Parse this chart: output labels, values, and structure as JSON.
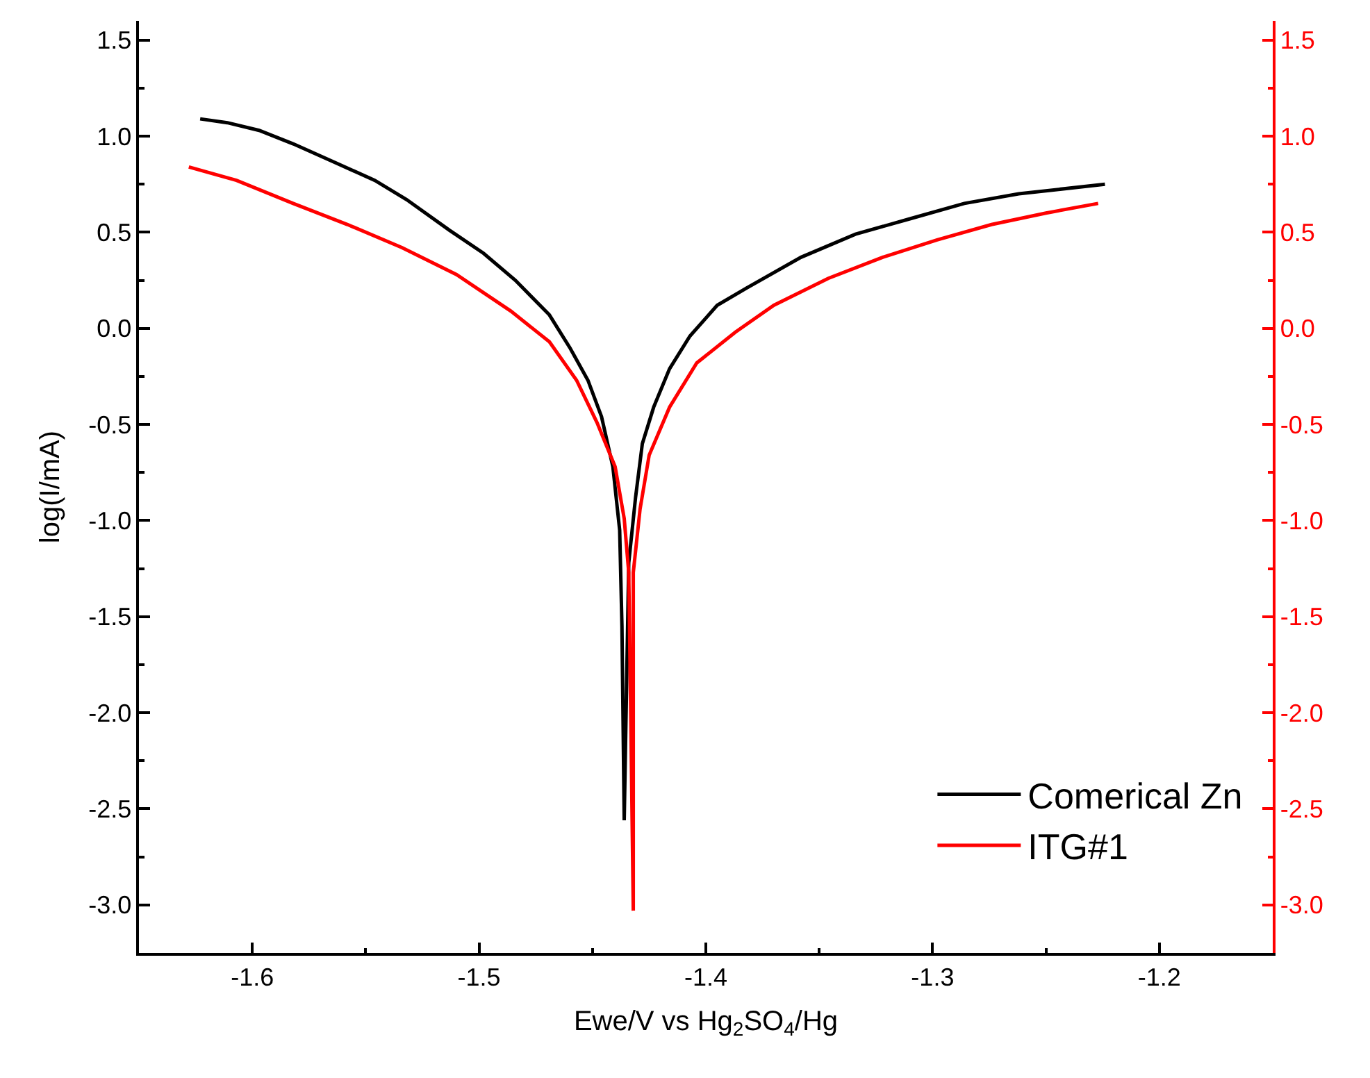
{
  "chart_data": {
    "type": "line",
    "xlabel": "Ewe/V vs Hg$_{2}$SO$_{4}$/Hg",
    "ylabel": "log(I/mA)",
    "xlim": [
      -1.65,
      -1.15
    ],
    "xticks": [
      -1.6,
      -1.5,
      -1.4,
      -1.3,
      -1.2
    ],
    "ylim": [
      -3.25,
      1.6
    ],
    "yticks": [
      {
        "value": 1.5,
        "label": "1.5"
      },
      {
        "value": 1,
        "label": "1.0"
      },
      {
        "value": 0.5,
        "label": "0.5"
      },
      {
        "value": 0,
        "label": "0.0"
      },
      {
        "value": -0.5,
        "label": "-0.5"
      },
      {
        "value": -1,
        "label": "-1.0"
      },
      {
        "value": -1.5,
        "label": "-1.5"
      },
      {
        "value": -2,
        "label": "-2.0"
      },
      {
        "value": -2.5,
        "label": "-2.5"
      },
      {
        "value": -3,
        "label": "-3.0"
      }
    ],
    "y2lim": [
      -3.25,
      1.6
    ],
    "y2ticks": [
      {
        "value": 1.5,
        "label": "1.5"
      },
      {
        "value": 1,
        "label": "1.0"
      },
      {
        "value": 0.5,
        "label": "0.5"
      },
      {
        "value": 0,
        "label": "0.0"
      },
      {
        "value": -0.5,
        "label": "-0.5"
      },
      {
        "value": -1,
        "label": "-1.0"
      },
      {
        "value": -1.5,
        "label": "-1.5"
      },
      {
        "value": -2,
        "label": "-2.0"
      },
      {
        "value": -2.5,
        "label": "-2.5"
      },
      {
        "value": -3,
        "label": "-3.0"
      }
    ],
    "legend": "bottom right",
    "marker": "none",
    "line_style": "solid",
    "series": [
      {
        "name": "Comerical Zn",
        "color": "#000000",
        "x": [
          -1.623,
          -1.611,
          -1.597,
          -1.582,
          -1.563,
          -1.546,
          -1.532,
          -1.513,
          -1.498,
          -1.484,
          -1.469,
          -1.46,
          -1.452,
          -1.446,
          -1.441,
          -1.438,
          -1.437,
          -1.436,
          -1.434,
          -1.431,
          -1.428,
          -1.423,
          -1.416,
          -1.407,
          -1.395,
          -1.382,
          -1.358,
          -1.334,
          -1.31,
          -1.286,
          -1.262,
          -1.224
        ],
        "values": [
          1.09,
          1.07,
          1.03,
          0.96,
          0.86,
          0.77,
          0.67,
          0.51,
          0.39,
          0.25,
          0.07,
          -0.1,
          -0.27,
          -0.46,
          -0.72,
          -1.05,
          -1.55,
          -2.56,
          -1.22,
          -0.88,
          -0.6,
          -0.41,
          -0.21,
          -0.04,
          0.12,
          0.21,
          0.37,
          0.49,
          0.57,
          0.65,
          0.7,
          0.75
        ]
      },
      {
        "name": "ITG#1",
        "color": "#ff0000",
        "axis": "y2",
        "x": [
          -1.628,
          -1.607,
          -1.582,
          -1.558,
          -1.534,
          -1.51,
          -1.486,
          -1.469,
          -1.457,
          -1.448,
          -1.44,
          -1.436,
          -1.434,
          -1.433,
          -1.432,
          -1.432,
          -1.429,
          -1.425,
          -1.416,
          -1.404,
          -1.387,
          -1.37,
          -1.346,
          -1.322,
          -1.298,
          -1.274,
          -1.25,
          -1.227
        ],
        "values": [
          0.84,
          0.77,
          0.65,
          0.54,
          0.42,
          0.28,
          0.09,
          -0.07,
          -0.27,
          -0.49,
          -0.72,
          -0.99,
          -1.27,
          -2.11,
          -3.03,
          -1.27,
          -0.94,
          -0.66,
          -0.41,
          -0.18,
          -0.02,
          0.12,
          0.26,
          0.37,
          0.46,
          0.54,
          0.6,
          0.65
        ]
      }
    ]
  }
}
